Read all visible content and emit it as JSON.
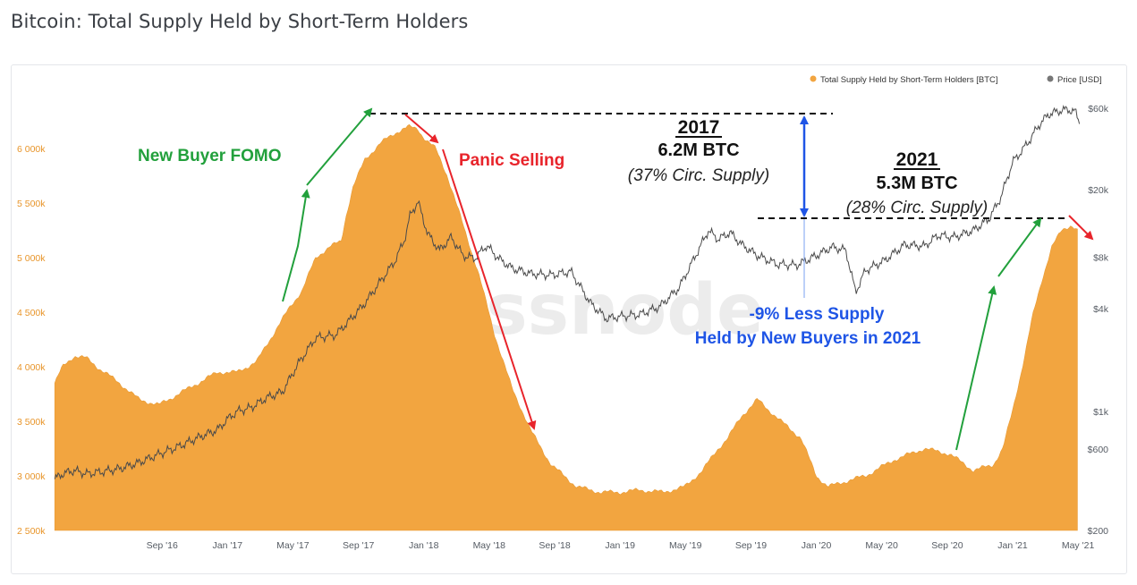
{
  "page": {
    "title": "Bitcoin: Total Supply Held by Short-Term Holders"
  },
  "colors": {
    "supply": "#f2a540",
    "price": "#4a4a4a",
    "green": "#22a03c",
    "red": "#e8242b",
    "blue": "#1f55e6"
  },
  "watermark": "glassnode",
  "chart_data": {
    "type": "area",
    "title": "Bitcoin: Total Supply Held by Short-Term Holders",
    "legend": {
      "position": "top-right",
      "items": [
        {
          "name": "Total Supply Held by Short-Term Holders [BTC]",
          "color": "#f2a540"
        },
        {
          "name": "Price [USD]",
          "color": "#777777"
        }
      ]
    },
    "x_ticks": [
      "Sep '16",
      "Jan '17",
      "May '17",
      "Sep '17",
      "Jan '18",
      "May '18",
      "Sep '18",
      "Jan '19",
      "May '19",
      "Sep '19",
      "Jan '20",
      "May '20",
      "Sep '20",
      "Jan '21",
      "May '21"
    ],
    "x_tick_times": [
      2016.667,
      2017.0,
      2017.333,
      2017.667,
      2018.0,
      2018.333,
      2018.667,
      2019.0,
      2019.333,
      2019.667,
      2020.0,
      2020.333,
      2020.667,
      2021.0,
      2021.333
    ],
    "xlim": [
      2016.11,
      2021.36
    ],
    "y_left": {
      "ticks": [
        "2 500k",
        "3 000k",
        "3 500k",
        "4 000k",
        "4 500k",
        "5 000k",
        "5 500k",
        "6 000k"
      ],
      "tick_values": [
        2500000,
        3000000,
        3500000,
        4000000,
        4500000,
        5000000,
        5500000,
        6000000
      ],
      "range": [
        2500000,
        6370000
      ]
    },
    "y_right": {
      "scale": "log",
      "ticks": [
        "$200",
        "$600",
        "$1k",
        "$4k",
        "$8k",
        "$20k",
        "$60k"
      ],
      "tick_values": [
        200,
        600,
        1000,
        4000,
        8000,
        20000,
        60000
      ],
      "range": [
        200,
        60000
      ]
    },
    "series": [
      {
        "name": "Total Supply Held by Short-Term Holders [BTC]",
        "axis": "left",
        "t": [
          2016.12,
          2016.16,
          2016.22,
          2016.28,
          2016.35,
          2016.45,
          2016.55,
          2016.65,
          2016.75,
          2016.85,
          2016.95,
          2017.05,
          2017.15,
          2017.25,
          2017.32,
          2017.38,
          2017.45,
          2017.52,
          2017.58,
          2017.6,
          2017.64,
          2017.7,
          2017.78,
          2017.86,
          2017.92,
          2017.97,
          2018.0,
          2018.06,
          2018.12,
          2018.2,
          2018.28,
          2018.36,
          2018.45,
          2018.55,
          2018.65,
          2018.78,
          2018.9,
          2019.0,
          2019.1,
          2019.22,
          2019.33,
          2019.42,
          2019.5,
          2019.55,
          2019.62,
          2019.7,
          2019.82,
          2019.92,
          2020.0,
          2020.06,
          2020.15,
          2020.25,
          2020.4,
          2020.55,
          2020.68,
          2020.8,
          2020.9,
          2020.95,
          2021.0,
          2021.05,
          2021.1,
          2021.15,
          2021.2,
          2021.25,
          2021.3,
          2021.33
        ],
        "values": [
          3850000,
          4000000,
          4100000,
          4080000,
          3980000,
          3850000,
          3700000,
          3650000,
          3750000,
          3850000,
          3950000,
          3950000,
          4050000,
          4350000,
          4550000,
          4700000,
          5000000,
          5100000,
          5150000,
          5350000,
          5650000,
          5900000,
          6050000,
          6150000,
          6200000,
          6180000,
          6100000,
          6000000,
          5750000,
          5300000,
          4850000,
          4300000,
          3800000,
          3400000,
          3100000,
          2900000,
          2850000,
          2850000,
          2870000,
          2850000,
          2900000,
          3050000,
          3250000,
          3350000,
          3550000,
          3700000,
          3500000,
          3350000,
          3000000,
          2900000,
          2950000,
          3000000,
          3150000,
          3250000,
          3200000,
          3050000,
          3100000,
          3250000,
          3600000,
          4000000,
          4450000,
          4800000,
          5100000,
          5250000,
          5300000,
          5250000
        ]
      },
      {
        "name": "Price [USD]",
        "axis": "right",
        "t": [
          2016.12,
          2016.16,
          2016.22,
          2016.28,
          2016.35,
          2016.45,
          2016.55,
          2016.65,
          2016.75,
          2016.85,
          2016.95,
          2017.0,
          2017.05,
          2017.12,
          2017.2,
          2017.28,
          2017.36,
          2017.45,
          2017.55,
          2017.62,
          2017.7,
          2017.78,
          2017.85,
          2017.9,
          2017.93,
          2017.97,
          2018.02,
          2018.08,
          2018.14,
          2018.2,
          2018.26,
          2018.32,
          2018.38,
          2018.45,
          2018.55,
          2018.65,
          2018.75,
          2018.85,
          2018.93,
          2019.0,
          2019.1,
          2019.2,
          2019.3,
          2019.38,
          2019.45,
          2019.5,
          2019.56,
          2019.62,
          2019.7,
          2019.8,
          2019.9,
          2020.0,
          2020.08,
          2020.15,
          2020.2,
          2020.25,
          2020.35,
          2020.45,
          2020.55,
          2020.62,
          2020.7,
          2020.8,
          2020.88,
          2020.94,
          2021.0,
          2021.04,
          2021.08,
          2021.13,
          2021.18,
          2021.24,
          2021.28,
          2021.32,
          2021.34
        ],
        "values": [
          400,
          430,
          450,
          430,
          440,
          460,
          500,
          560,
          620,
          700,
          780,
          900,
          1000,
          1050,
          1200,
          1300,
          1900,
          2700,
          2800,
          3400,
          4300,
          5800,
          7500,
          10000,
          14000,
          17000,
          11000,
          8800,
          10500,
          8200,
          7900,
          9400,
          7900,
          6900,
          6400,
          6300,
          6600,
          4300,
          3500,
          3600,
          3700,
          4100,
          5300,
          8000,
          11500,
          10200,
          11200,
          9500,
          8200,
          7300,
          7200,
          8200,
          9200,
          8800,
          5000,
          6700,
          7700,
          9500,
          9300,
          10800,
          10500,
          11500,
          13500,
          18000,
          29000,
          33000,
          38000,
          47000,
          55000,
          58000,
          59000,
          57000,
          50000
        ]
      }
    ],
    "annotations": {
      "green_left": "New Buyer FOMO",
      "red_left": "Panic Selling",
      "year_2017": "2017",
      "btc_2017": "6.2M BTC",
      "pct_2017": "(37% Circ. Supply)",
      "year_2021": "2021",
      "btc_2021": "5.3M BTC",
      "pct_2021": "(28% Circ. Supply)",
      "less_line1": "-9% Less Supply",
      "less_line2": "Held by New Buyers in 2021"
    }
  }
}
